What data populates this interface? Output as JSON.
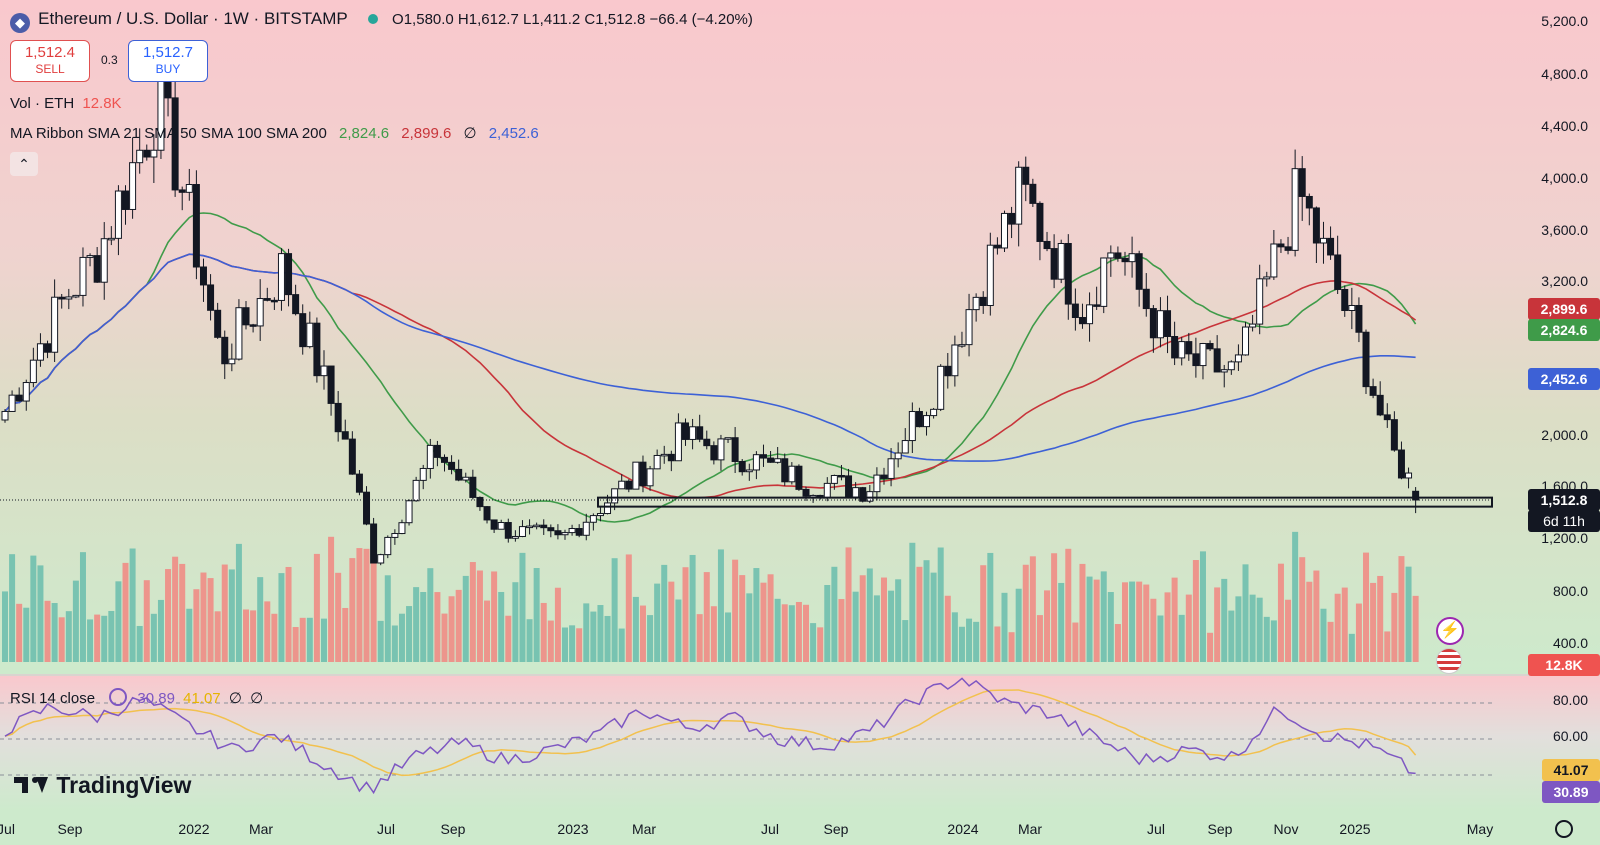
{
  "header": {
    "symbol": "Ethereum / U.S. Dollar · 1W · BITSTAMP",
    "ohlc": "O1,580.0 H1,612.7 L1,411.2 C1,512.8 −66.4 (−4.20%)"
  },
  "trade": {
    "sell_price": "1,512.4",
    "sell_label": "SELL",
    "spread": "0.3",
    "buy_price": "1,512.7",
    "buy_label": "BUY"
  },
  "indicators": {
    "volume_label": "Vol · ETH",
    "volume_value": "12.8K",
    "ma_label": "MA Ribbon SMA 21 SMA 50 SMA 100 SMA 200",
    "ma_v1": "2,824.6",
    "ma_v2": "2,899.6",
    "ma_v3": "∅",
    "ma_v4": "2,452.6",
    "rsi_label": "RSI 14 close",
    "rsi_value": "30.89",
    "rsi_ma": "41.07",
    "rsi_e1": "∅",
    "rsi_e2": "∅"
  },
  "price_axis": {
    "ticks": [
      "5,200.0",
      "4,800.0",
      "4,400.0",
      "4,000.0",
      "3,600.0",
      "3,200.0",
      "2,000.0",
      "1,600.0",
      "1,200.0",
      "800.0",
      "400.0"
    ],
    "tags": {
      "ma50": "2,899.6",
      "ma21": "2,824.6",
      "ma200": "2,452.6",
      "price": "1,512.8",
      "countdown": "6d 11h",
      "volume": "12.8K"
    }
  },
  "rsi_axis": {
    "ticks": [
      "80.00",
      "60.00"
    ],
    "tags": {
      "rsi_ma": "41.07",
      "rsi": "30.89"
    }
  },
  "time_axis": [
    "Jul",
    "Sep",
    "2022",
    "Mar",
    "Jul",
    "Sep",
    "2023",
    "Mar",
    "Jul",
    "Sep",
    "2024",
    "Mar",
    "Jul",
    "Sep",
    "Nov",
    "2025",
    "May"
  ],
  "brand": "TradingView",
  "colors": {
    "up": "#ffffff",
    "down": "#131722",
    "ma21": "#3f9b49",
    "ma50": "#c8343a",
    "ma200": "#3d61d6",
    "rsi": "#7e57c2",
    "rsi_ma": "#f2c14e",
    "vol_up": "#6fbfae",
    "vol_down": "#ef8c85"
  },
  "chart_data": [
    {
      "type": "candlestick",
      "title": "Ethereum / U.S. Dollar · 1W · BITSTAMP",
      "ylim": [
        100,
        5400
      ],
      "x_start": "2021-06",
      "anchors": [
        {
          "date": "2021-06",
          "close": 2200
        },
        {
          "date": "2021-08",
          "close": 3100
        },
        {
          "date": "2021-09",
          "close": 3400
        },
        {
          "date": "2021-11",
          "close": 4600
        },
        {
          "date": "2021-12",
          "close": 3700
        },
        {
          "date": "2022-01",
          "close": 2600
        },
        {
          "date": "2022-03",
          "close": 3300
        },
        {
          "date": "2022-05",
          "close": 2000
        },
        {
          "date": "2022-06",
          "close": 1050
        },
        {
          "date": "2022-08",
          "close": 1900
        },
        {
          "date": "2022-10",
          "close": 1300
        },
        {
          "date": "2022-12",
          "close": 1200
        },
        {
          "date": "2023-02",
          "close": 1600
        },
        {
          "date": "2023-04",
          "close": 2000
        },
        {
          "date": "2023-06",
          "close": 1850
        },
        {
          "date": "2023-08",
          "close": 1650
        },
        {
          "date": "2023-10",
          "close": 1600
        },
        {
          "date": "2023-12",
          "close": 2300
        },
        {
          "date": "2024-03",
          "close": 3900
        },
        {
          "date": "2024-05",
          "close": 3000
        },
        {
          "date": "2024-06",
          "close": 3500
        },
        {
          "date": "2024-08",
          "close": 2600
        },
        {
          "date": "2024-10",
          "close": 2500
        },
        {
          "date": "2024-12",
          "close": 3900
        },
        {
          "date": "2025-01",
          "close": 3300
        },
        {
          "date": "2025-02",
          "close": 2700
        },
        {
          "date": "2025-03",
          "close": 1900
        },
        {
          "date": "2025-04",
          "close": 1512.8
        }
      ],
      "last": {
        "open": 1580.0,
        "high": 1612.7,
        "low": 1411.2,
        "close": 1512.8,
        "change": -66.4,
        "change_pct": -4.2
      },
      "moving_averages": [
        {
          "name": "SMA 21",
          "value": 2824.6
        },
        {
          "name": "SMA 50",
          "value": 2899.6
        },
        {
          "name": "SMA 200",
          "value": 2452.6
        }
      ],
      "support_level": 1500
    },
    {
      "type": "line",
      "title": "RSI 14 close",
      "ylim": [
        20,
        90
      ],
      "yticks": [
        60,
        80
      ],
      "guides": [
        70,
        50,
        30
      ],
      "series": [
        {
          "name": "RSI",
          "last": 30.89,
          "anchors": [
            55,
            68,
            62,
            72,
            58,
            44,
            52,
            36,
            22,
            40,
            48,
            38,
            44,
            52,
            66,
            56,
            62,
            50,
            46,
            54,
            72,
            84,
            70,
            64,
            50,
            38,
            44,
            40,
            67,
            52,
            46,
            30.89
          ]
        },
        {
          "name": "RSI MA",
          "last": 41.07
        }
      ]
    }
  ]
}
